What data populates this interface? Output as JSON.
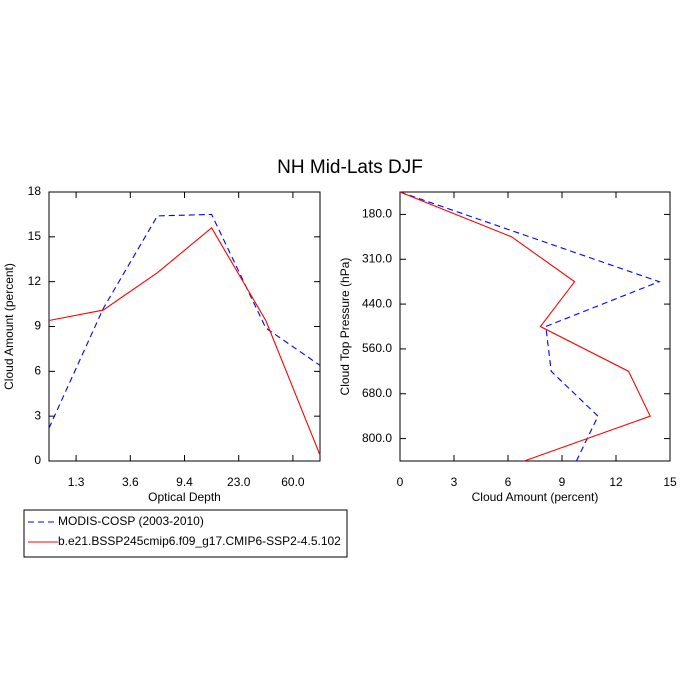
{
  "title": "NH Mid-Lats DJF",
  "chart_data": [
    {
      "type": "line",
      "orientation": "vertical",
      "xlabel": "Optical Depth",
      "ylabel": "Cloud Amount (percent)",
      "x": [
        0,
        1,
        2,
        3,
        4,
        5
      ],
      "xlim": [
        0,
        5
      ],
      "xticks": [
        {
          "value": 0.5,
          "label": "1.3"
        },
        {
          "value": 1.5,
          "label": "3.6"
        },
        {
          "value": 2.5,
          "label": "9.4"
        },
        {
          "value": 3.5,
          "label": "23.0"
        },
        {
          "value": 4.5,
          "label": "60.0"
        }
      ],
      "ylim": [
        0,
        18
      ],
      "yticks": [
        0,
        3,
        6,
        9,
        12,
        15,
        18
      ],
      "series": [
        {
          "name": "MODIS-COSP (2003-2010)",
          "color": "#0000ff",
          "style": "dashed",
          "values": [
            2.2,
            10.2,
            16.4,
            16.5,
            8.9,
            6.4
          ]
        },
        {
          "name": "b.e21.BSSP245cmip6.f09_g17.CMIP6-SSP2-4.5.102",
          "color": "#ff0000",
          "style": "solid",
          "values": [
            9.4,
            10.1,
            12.6,
            15.6,
            9.4,
            0.4
          ]
        }
      ]
    },
    {
      "type": "line",
      "orientation": "horizontal",
      "xlabel": "Cloud Amount (percent)",
      "ylabel": "Cloud Top Pressure (hPa)",
      "y": [
        0,
        1,
        2,
        3,
        4,
        5,
        6
      ],
      "ylim": [
        6,
        0
      ],
      "yticks": [
        {
          "value": 0.5,
          "label": "180.0"
        },
        {
          "value": 1.5,
          "label": "310.0"
        },
        {
          "value": 2.5,
          "label": "440.0"
        },
        {
          "value": 3.5,
          "label": "560.0"
        },
        {
          "value": 4.5,
          "label": "680.0"
        },
        {
          "value": 5.5,
          "label": "800.0"
        }
      ],
      "xlim": [
        0,
        15
      ],
      "xticks": [
        0,
        3,
        6,
        9,
        12,
        15
      ],
      "series": [
        {
          "name": "MODIS-COSP (2003-2010)",
          "color": "#0000ff",
          "style": "dashed",
          "values": [
            0,
            7.2,
            14.4,
            8.1,
            8.4,
            11.0,
            9.8
          ]
        },
        {
          "name": "b.e21.BSSP245cmip6.f09_g17.CMIP6-SSP2-4.5.102",
          "color": "#ff0000",
          "style": "solid",
          "values": [
            0,
            6.2,
            9.7,
            7.8,
            12.7,
            13.9,
            6.9
          ]
        }
      ]
    }
  ]
}
